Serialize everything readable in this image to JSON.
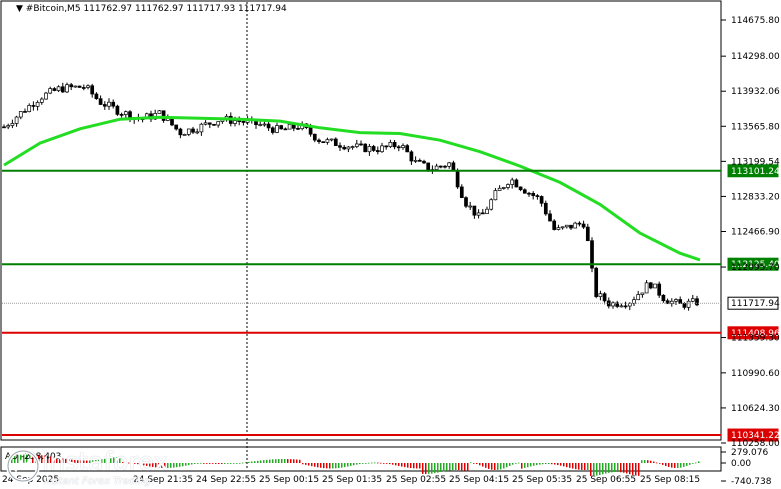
{
  "header": {
    "symbol": "#Bitcoin,M5",
    "ohlc": "111762.97 111762.97 111717.93 111717.94"
  },
  "colors": {
    "candle": "#000000",
    "ma": "#22dd22",
    "green_level": "#008000",
    "red_level": "#dd0000",
    "current_price": "#9a9a9a",
    "ao_up": "#22aa22",
    "ao_down": "#dd0000"
  },
  "price_axis": {
    "ticks": [
      "114675.80",
      "114298.00",
      "113932.06",
      "113565.80",
      "113199.54",
      "112833.20",
      "112466.90",
      "112095.70",
      "111359.30",
      "110990.60",
      "110624.30",
      "110258.00"
    ]
  },
  "levels": {
    "green_upper": "113101.24",
    "green_lower": "112125.40",
    "current": "111717.94",
    "red_upper": "111408.96",
    "red_lower": "110341.22"
  },
  "time_axis": {
    "labels": [
      "24 Sep 2025",
      "24 Sep 21:35",
      "24 Sep 22:55",
      "25 Sep 00:15",
      "25 Sep 01:35",
      "25 Sep 02:55",
      "25 Sep 04:15",
      "25 Sep 05:35",
      "25 Sep 06:55",
      "25 Sep 08:15"
    ]
  },
  "indicator": {
    "label": "AO -238.403",
    "scale_top": "279.076",
    "scale_zero": "0.00",
    "scale_bottom": "-740.738"
  },
  "watermark": {
    "name": "instaforex",
    "tagline": "Instant Forex Trading"
  }
}
